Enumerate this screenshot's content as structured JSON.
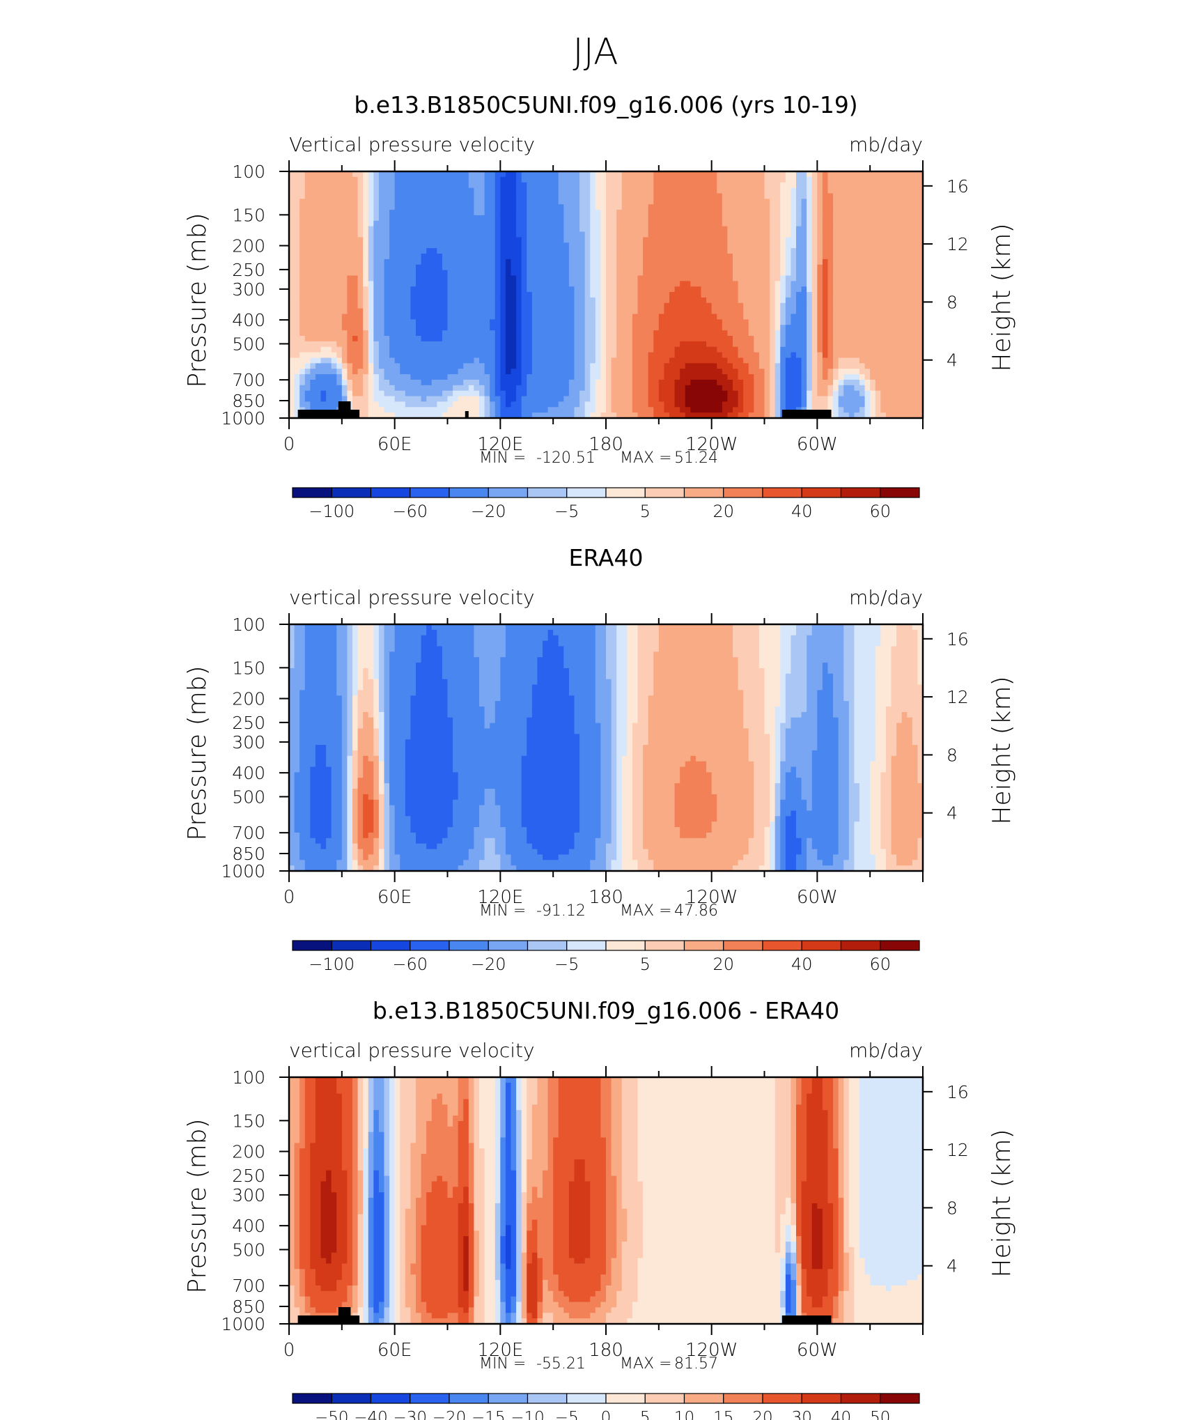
{
  "figure": {
    "title": "JJA"
  },
  "colors": {
    "panel_cmap": [
      "#08127e",
      "#0a2eb8",
      "#1546e0",
      "#2a62f0",
      "#4a86f0",
      "#78a6f2",
      "#a9c6f5",
      "#d7e7fb",
      "#fde8d8",
      "#fccdb4",
      "#f9ab86",
      "#f28158",
      "#e8562e",
      "#d43a18",
      "#b31e0c",
      "#880606"
    ],
    "terrain": "#000000"
  },
  "chart_data": [
    {
      "type": "heatmap",
      "title": "b.e13.B1850C5UNI.f09_g16.006 (yrs 10-19)",
      "left_header": "Vertical pressure velocity",
      "right_header": "mb/day",
      "xlabel": "",
      "ylabel": "Pressure (mb)",
      "ylabel_right": "Height (km)",
      "x_ticks": [
        "0",
        "60E",
        "120E",
        "180",
        "120W",
        "60W"
      ],
      "x_range": [
        0,
        360
      ],
      "y_ticks": [
        "100",
        "150",
        "200",
        "250",
        "300",
        "400",
        "500",
        "700",
        "850",
        "1000"
      ],
      "y_range_mb": [
        1000,
        100
      ],
      "y_right_ticks": [
        "16",
        "12",
        "8",
        "4"
      ],
      "min_label": "MIN =",
      "min_value": "-120.51",
      "max_label": "MAX =",
      "max_value": "51.24",
      "colorbar_labels": [
        "−100",
        "−60",
        "−20",
        "−5",
        "5",
        "20",
        "40",
        "60"
      ],
      "levels": [
        "-100",
        "-80",
        "-60",
        "-40",
        "-20",
        "-10",
        "-5",
        "0",
        "5",
        "10",
        "20",
        "30",
        "40",
        "50",
        "60"
      ],
      "field": [
        {
          "lon": 20,
          "p": 500,
          "v": 20,
          "sx": 10,
          "sp": 350
        },
        {
          "lon": 20,
          "p": 800,
          "v": -60,
          "sx": 9,
          "sp": 180
        },
        {
          "lon": 38,
          "p": 500,
          "v": 30,
          "sx": 5,
          "sp": 250
        },
        {
          "lon": 80,
          "p": 350,
          "v": -50,
          "sx": 22,
          "sp": 320
        },
        {
          "lon": 100,
          "p": 850,
          "v": 10,
          "sx": 10,
          "sp": 120
        },
        {
          "lon": 125,
          "p": 450,
          "v": -65,
          "sx": 6,
          "sp": 550
        },
        {
          "lon": 145,
          "p": 500,
          "v": -40,
          "sx": 20,
          "sp": 450
        },
        {
          "lon": 225,
          "p": 600,
          "v": 30,
          "sx": 28,
          "sp": 500
        },
        {
          "lon": 240,
          "p": 850,
          "v": 40,
          "sx": 18,
          "sp": 200
        },
        {
          "lon": 285,
          "p": 800,
          "v": -70,
          "sx": 5,
          "sp": 300
        },
        {
          "lon": 292,
          "p": 400,
          "v": -25,
          "sx": 3,
          "sp": 300
        },
        {
          "lon": 305,
          "p": 400,
          "v": 25,
          "sx": 3,
          "sp": 250
        },
        {
          "lon": 320,
          "p": 850,
          "v": -30,
          "sx": 8,
          "sp": 150
        },
        {
          "lon": 340,
          "p": 400,
          "v": 15,
          "sx": 25,
          "sp": 450
        }
      ],
      "background_value": 5
    },
    {
      "type": "heatmap",
      "title": "ERA40",
      "left_header": "vertical pressure velocity",
      "right_header": "mb/day",
      "xlabel": "",
      "ylabel": "Pressure (mb)",
      "ylabel_right": "Height (km)",
      "x_ticks": [
        "0",
        "60E",
        "120E",
        "180",
        "120W",
        "60W"
      ],
      "x_range": [
        0,
        360
      ],
      "y_ticks": [
        "100",
        "150",
        "200",
        "250",
        "300",
        "400",
        "500",
        "700",
        "850",
        "1000"
      ],
      "y_range_mb": [
        1000,
        100
      ],
      "y_right_ticks": [
        "16",
        "12",
        "8",
        "4"
      ],
      "min_label": "MIN =",
      "min_value": "-91.12",
      "max_label": "MAX =",
      "max_value": "47.86",
      "colorbar_labels": [
        "−100",
        "−60",
        "−20",
        "−5",
        "5",
        "20",
        "40",
        "60"
      ],
      "levels": [
        "-100",
        "-80",
        "-60",
        "-40",
        "-20",
        "-10",
        "-5",
        "0",
        "5",
        "10",
        "20",
        "30",
        "40",
        "50",
        "60"
      ],
      "field": [
        {
          "lon": 18,
          "p": 550,
          "v": -45,
          "sx": 10,
          "sp": 400
        },
        {
          "lon": 45,
          "p": 600,
          "v": 45,
          "sx": 7,
          "sp": 300
        },
        {
          "lon": 80,
          "p": 450,
          "v": -50,
          "sx": 18,
          "sp": 450
        },
        {
          "lon": 115,
          "p": 800,
          "v": 10,
          "sx": 6,
          "sp": 200
        },
        {
          "lon": 150,
          "p": 500,
          "v": -55,
          "sx": 20,
          "sp": 450
        },
        {
          "lon": 230,
          "p": 550,
          "v": 25,
          "sx": 30,
          "sp": 500
        },
        {
          "lon": 285,
          "p": 800,
          "v": -55,
          "sx": 5,
          "sp": 300
        },
        {
          "lon": 305,
          "p": 550,
          "v": -30,
          "sx": 8,
          "sp": 400
        },
        {
          "lon": 350,
          "p": 600,
          "v": 20,
          "sx": 10,
          "sp": 400
        }
      ],
      "background_value": -3
    },
    {
      "type": "heatmap",
      "title": "b.e13.B1850C5UNI.f09_g16.006 - ERA40",
      "left_header": "vertical pressure velocity",
      "right_header": "mb/day",
      "xlabel": "",
      "ylabel": "Pressure (mb)",
      "ylabel_right": "Height (km)",
      "x_ticks": [
        "0",
        "60E",
        "120E",
        "180",
        "120W",
        "60W"
      ],
      "x_range": [
        0,
        360
      ],
      "y_ticks": [
        "100",
        "150",
        "200",
        "250",
        "300",
        "400",
        "500",
        "700",
        "850",
        "1000"
      ],
      "y_range_mb": [
        1000,
        100
      ],
      "y_right_ticks": [
        "16",
        "12",
        "8",
        "4"
      ],
      "min_label": "MIN =",
      "min_value": "-55.21",
      "max_label": "MAX =",
      "max_value": "81.57",
      "colorbar_labels": [
        "−50",
        "−40",
        "−30",
        "−20",
        "−15",
        "−10",
        "−5",
        "0",
        "5",
        "10",
        "15",
        "20",
        "30",
        "40",
        "50"
      ],
      "levels": [
        "-50",
        "-40",
        "-30",
        "-20",
        "-15",
        "-10",
        "-5",
        "0",
        "5",
        "10",
        "15",
        "20",
        "30",
        "40",
        "50"
      ],
      "field": [
        {
          "lon": 22,
          "p": 400,
          "v": 40,
          "sx": 12,
          "sp": 400
        },
        {
          "lon": 50,
          "p": 550,
          "v": -35,
          "sx": 5,
          "sp": 400
        },
        {
          "lon": 85,
          "p": 600,
          "v": 25,
          "sx": 12,
          "sp": 400
        },
        {
          "lon": 100,
          "p": 600,
          "v": 30,
          "sx": 3,
          "sp": 350
        },
        {
          "lon": 125,
          "p": 500,
          "v": -35,
          "sx": 4,
          "sp": 450
        },
        {
          "lon": 138,
          "p": 750,
          "v": 35,
          "sx": 3,
          "sp": 250
        },
        {
          "lon": 165,
          "p": 400,
          "v": 30,
          "sx": 15,
          "sp": 400
        },
        {
          "lon": 285,
          "p": 750,
          "v": -40,
          "sx": 3,
          "sp": 250
        },
        {
          "lon": 300,
          "p": 450,
          "v": 40,
          "sx": 10,
          "sp": 450
        },
        {
          "lon": 340,
          "p": 300,
          "v": -8,
          "sx": 20,
          "sp": 300
        }
      ],
      "background_value": 3
    }
  ]
}
